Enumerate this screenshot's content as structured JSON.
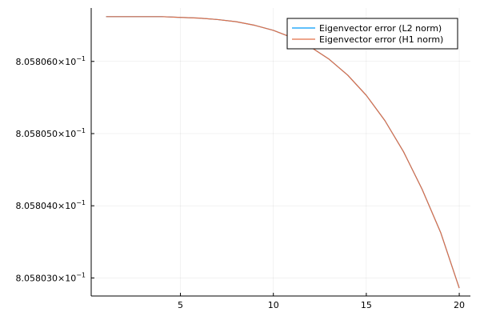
{
  "chart_data": {
    "type": "line",
    "title": "",
    "xlabel": "",
    "ylabel": "",
    "grid": true,
    "legend_position": "top-right",
    "xlim": [
      0.2,
      20.6
    ],
    "ylim": [
      8.0580275,
      8.0580674
    ],
    "x_ticks": [
      5,
      10,
      15,
      20
    ],
    "y_ticks": [
      {
        "value": 8.05806,
        "mantissa": "8.058060",
        "times": "×",
        "base": "10",
        "exponent": "−1"
      },
      {
        "value": 8.05805,
        "mantissa": "8.058050",
        "times": "×",
        "base": "10",
        "exponent": "−1"
      },
      {
        "value": 8.05804,
        "mantissa": "8.058040",
        "times": "×",
        "base": "10",
        "exponent": "−1"
      },
      {
        "value": 8.05803,
        "mantissa": "8.058030",
        "times": "×",
        "base": "10",
        "exponent": "−1"
      }
    ],
    "x": [
      1,
      2,
      3,
      4,
      5,
      6,
      7,
      8,
      9,
      10,
      11,
      12,
      13,
      14,
      15,
      16,
      17,
      18,
      19,
      20
    ],
    "series": [
      {
        "name": "Eigenvector error (L2 norm)",
        "color": "#009af9",
        "values": [
          8.0580662,
          8.0580662,
          8.0580662,
          8.0580662,
          8.0580661,
          8.058066,
          8.0580658,
          8.0580655,
          8.058065,
          8.0580643,
          8.0580633,
          8.058062,
          8.0580603,
          8.0580581,
          8.0580553,
          8.0580518,
          8.0580475,
          8.0580423,
          8.0580363,
          8.0580286
        ]
      },
      {
        "name": "Eigenvector error (H1 norm)",
        "color": "#e26f46",
        "values": [
          8.0580662,
          8.0580662,
          8.0580662,
          8.0580662,
          8.0580661,
          8.058066,
          8.0580658,
          8.0580655,
          8.058065,
          8.0580643,
          8.0580633,
          8.058062,
          8.0580603,
          8.0580581,
          8.0580553,
          8.0580518,
          8.0580475,
          8.0580423,
          8.0580363,
          8.0580286
        ]
      }
    ]
  }
}
